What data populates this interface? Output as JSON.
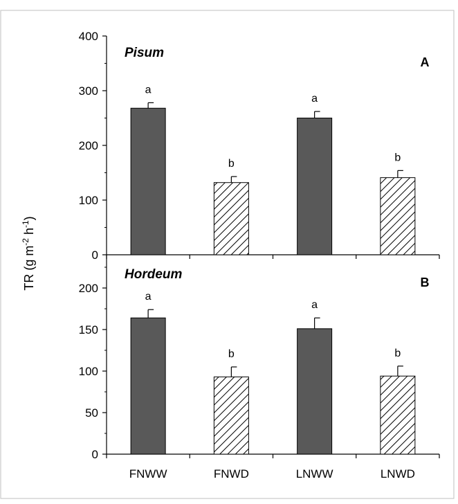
{
  "chart_data": [
    {
      "type": "bar",
      "panel_letter": "A",
      "species": "Pisum",
      "categories": [
        "FNWW",
        "FNWD",
        "LNWW",
        "LNWD"
      ],
      "values": [
        268,
        132,
        250,
        141
      ],
      "errors": [
        10,
        11,
        12,
        13
      ],
      "letters": [
        "a",
        "b",
        "a",
        "b"
      ],
      "patterns": [
        "solid",
        "hatched",
        "solid",
        "hatched"
      ],
      "ylim": [
        0,
        400
      ],
      "yticks": [
        0,
        100,
        200,
        300,
        400
      ],
      "ytick_labels": [
        "0",
        "100",
        "200",
        "300",
        "400"
      ]
    },
    {
      "type": "bar",
      "panel_letter": "B",
      "species": "Hordeum",
      "categories": [
        "FNWW",
        "FNWD",
        "LNWW",
        "LNWD"
      ],
      "values": [
        164,
        93,
        151,
        94
      ],
      "errors": [
        10,
        12,
        13,
        12
      ],
      "letters": [
        "a",
        "b",
        "a",
        "b"
      ],
      "patterns": [
        "solid",
        "hatched",
        "solid",
        "hatched"
      ],
      "ylim": [
        0,
        240
      ],
      "yticks": [
        0,
        50,
        100,
        150,
        200
      ],
      "ytick_labels": [
        "0",
        "50",
        "100",
        "150",
        "200"
      ]
    }
  ],
  "shared_x_labels": [
    "FNWW",
    "FNWD",
    "LNWW",
    "LNWD"
  ],
  "ylabel": {
    "base": "TR (g m",
    "sup1": "-2",
    "mid": " h",
    "sup2": "-1",
    "end": ")"
  },
  "colors": {
    "bar_fill": "#595959",
    "bar_stroke": "#000000",
    "hatch": "#000000",
    "axis": "#000000",
    "frame": "#bfbfbf"
  }
}
